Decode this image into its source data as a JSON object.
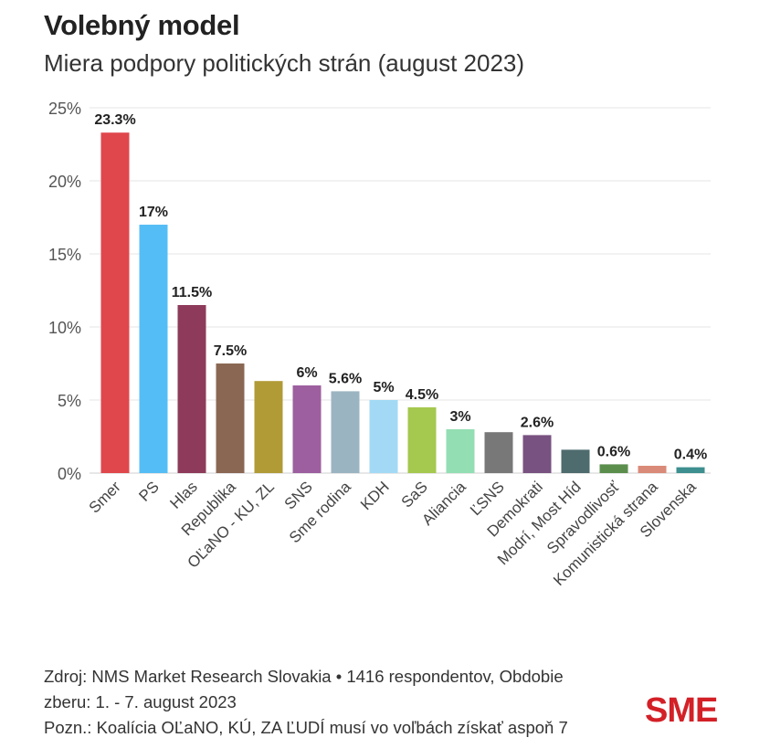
{
  "header": {
    "title": "Volebný model",
    "subtitle": "Miera podpory politických strán (august 2023)"
  },
  "chart_data": {
    "type": "bar",
    "categories": [
      "Smer",
      "PS",
      "Hlas",
      "Republika",
      "OĽaNO - KU, ZL",
      "SNS",
      "Sme rodina",
      "KDH",
      "SaS",
      "Aliancia",
      "ĽSNS",
      "Demokrati",
      "Modrí, Most Híd",
      "Spravodlivosť",
      "Komunistická strana",
      "Slovenska"
    ],
    "values": [
      23.3,
      17,
      11.5,
      7.5,
      6.3,
      6,
      5.6,
      5,
      4.5,
      3,
      2.8,
      2.6,
      1.6,
      0.6,
      0.5,
      0.4
    ],
    "data_labels": [
      "23.3%",
      "17%",
      "11.5%",
      "7.5%",
      "",
      "6%",
      "5.6%",
      "5%",
      "4.5%",
      "3%",
      "",
      "2.6%",
      "",
      "0.6%",
      "",
      "0.4%"
    ],
    "colors": [
      "#e0474c",
      "#55bdf5",
      "#8e3b5b",
      "#8a6753",
      "#b09b37",
      "#9d5f9f",
      "#9bb4c2",
      "#a3d9f5",
      "#a5c84f",
      "#93deb3",
      "#787878",
      "#785280",
      "#4e6b6d",
      "#5b8e4d",
      "#da8a78",
      "#3e8f8f"
    ],
    "ylim": [
      0,
      25
    ],
    "y_ticks": [
      0,
      5,
      10,
      15,
      20,
      25
    ],
    "y_tick_labels": [
      "0%",
      "5%",
      "10%",
      "15%",
      "20%",
      "25%"
    ],
    "grid": true,
    "xlabel": "",
    "ylabel": ""
  },
  "footer": {
    "line1": "Zdroj: NMS Market Research Slovakia • 1416 respondentov, Obdobie",
    "line2": "zberu: 1. - 7. august 2023",
    "line3": "Pozn.: Koalícia OĽaNO, KÚ, ZA ĽUDÍ musí vo voľbách získať aspoň 7"
  },
  "logo": {
    "text": "SME",
    "color": "#d32027"
  }
}
